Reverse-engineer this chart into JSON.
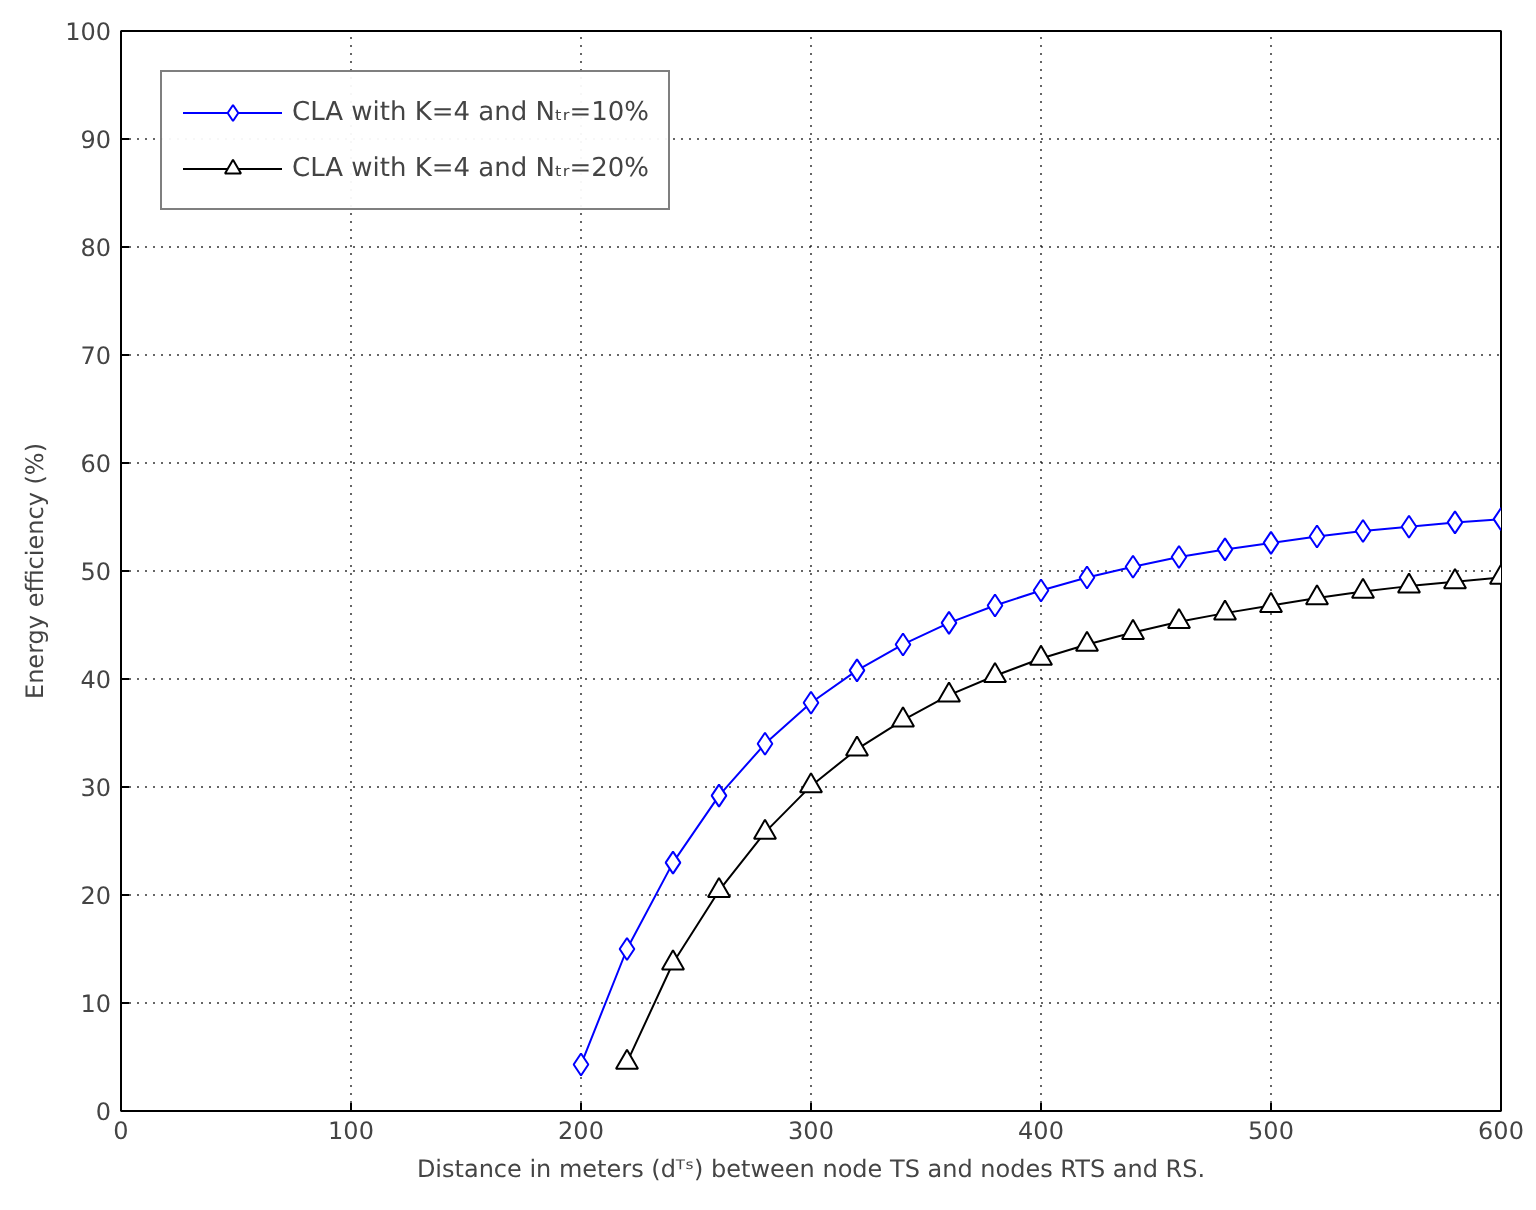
{
  "chart_data": {
    "type": "line",
    "xlabel": "Distance in meters (dᵀˢ) between node TS and nodes RTS and RS.",
    "ylabel": "Energy efficiency (%)",
    "xlim": [
      0,
      600
    ],
    "xticks": [
      0,
      100,
      200,
      300,
      400,
      500,
      600
    ],
    "ylim": [
      0,
      100
    ],
    "yticks": [
      0,
      10,
      20,
      30,
      40,
      50,
      60,
      70,
      80,
      90,
      100
    ],
    "grid": true,
    "legend": "top left",
    "line_style": "solid",
    "series": [
      {
        "name": "CLA with K=4 and Nₜᵣ=10%",
        "color": "#0000ff",
        "marker": "diamond",
        "x": [
          200,
          220,
          240,
          260,
          280,
          300,
          320,
          340,
          360,
          380,
          400,
          420,
          440,
          460,
          480,
          500,
          520,
          540,
          560,
          580,
          600
        ],
        "values": [
          4.3,
          15,
          23,
          29.2,
          34,
          37.8,
          40.8,
          43.2,
          45.2,
          46.8,
          48.2,
          49.4,
          50.4,
          51.3,
          52,
          52.6,
          53.2,
          53.7,
          54.1,
          54.5,
          54.8
        ]
      },
      {
        "name": "CLA with K=4 and Nₜᵣ=20%",
        "color": "#000000",
        "marker": "triangle",
        "x": [
          220,
          240,
          260,
          280,
          300,
          320,
          340,
          360,
          380,
          400,
          420,
          440,
          460,
          480,
          500,
          520,
          540,
          560,
          580,
          600
        ],
        "values": [
          4.5,
          13.7,
          20.4,
          25.8,
          30.1,
          33.5,
          36.2,
          38.5,
          40.3,
          41.9,
          43.2,
          44.3,
          45.3,
          46.1,
          46.8,
          47.5,
          48.1,
          48.6,
          49.0,
          49.4
        ]
      }
    ]
  }
}
